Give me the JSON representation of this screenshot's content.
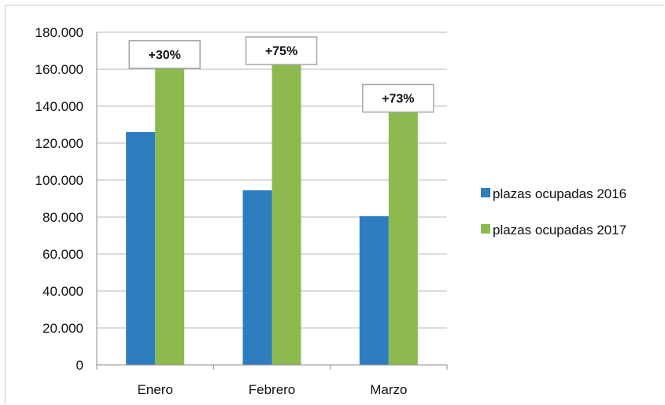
{
  "chart_data": {
    "type": "bar",
    "categories": [
      "Enero",
      "Febrero",
      "Marzo"
    ],
    "series": [
      {
        "name": "plazas ocupadas 2016",
        "color": "#2E7DC1",
        "values": [
          126000,
          94500,
          80500
        ]
      },
      {
        "name": "plazas ocupadas 2017",
        "color": "#8DBA4F",
        "values": [
          163500,
          165500,
          139800
        ]
      }
    ],
    "annotations": [
      {
        "category": "Enero",
        "text": "+30%"
      },
      {
        "category": "Febrero",
        "text": "+75%"
      },
      {
        "category": "Marzo",
        "text": "+73%"
      }
    ],
    "ylim": [
      0,
      180000
    ],
    "y_ticks": [
      0,
      20000,
      40000,
      60000,
      80000,
      100000,
      120000,
      140000,
      160000,
      180000
    ],
    "y_tick_labels": [
      "0",
      "20.000",
      "40.000",
      "60.000",
      "80.000",
      "100.000",
      "120.000",
      "140.000",
      "160.000",
      "180.000"
    ],
    "title": "",
    "xlabel": "",
    "ylabel": "",
    "grid": true,
    "legend_position": "right",
    "colors": {
      "gridline": "#b8b8b8",
      "axis": "#8c8c8c",
      "text": "#111111",
      "annotation_border": "#a6a6a6"
    }
  }
}
